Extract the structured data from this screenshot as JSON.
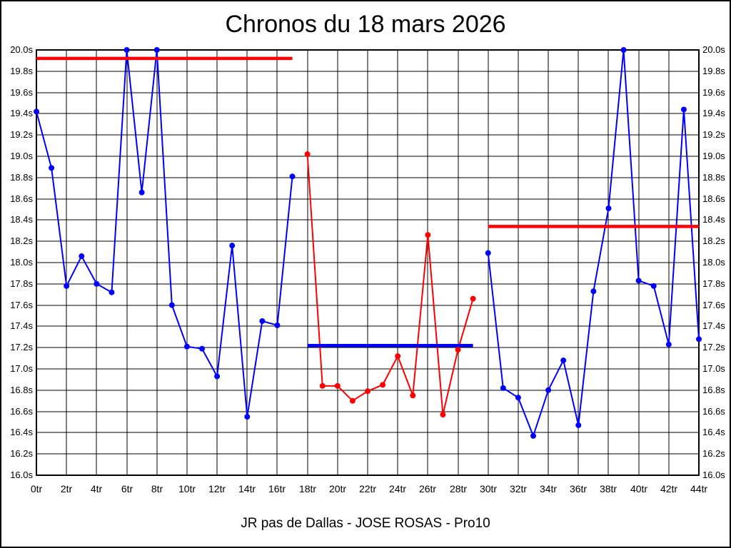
{
  "title": "Chronos du 18 mars 2026",
  "footer": "JR pas de Dallas - JOSE ROSAS - Pro10",
  "colors": {
    "blue_series": "#0000ff",
    "red_series": "#ff0000",
    "grid": "#000000",
    "background": "#ffffff"
  },
  "chart_data": {
    "type": "line",
    "title": "Chronos du 18 mars 2026",
    "xlabel": "",
    "ylabel": "",
    "x_unit": "tr",
    "y_unit": "s",
    "xlim": [
      0,
      44
    ],
    "ylim": [
      16.0,
      20.0
    ],
    "x_tick_step": 2,
    "y_tick_step": 0.2,
    "grid": true,
    "legend": false,
    "x_ticks": [
      "0tr",
      "2tr",
      "4tr",
      "6tr",
      "8tr",
      "10tr",
      "12tr",
      "14tr",
      "16tr",
      "18tr",
      "20tr",
      "22tr",
      "24tr",
      "26tr",
      "28tr",
      "30tr",
      "32tr",
      "34tr",
      "36tr",
      "38tr",
      "40tr",
      "42tr",
      "44tr"
    ],
    "y_ticks": [
      "20.0s",
      "19.8s",
      "19.6s",
      "19.4s",
      "19.2s",
      "19.0s",
      "18.8s",
      "18.6s",
      "18.4s",
      "18.2s",
      "18.0s",
      "17.8s",
      "17.6s",
      "17.4s",
      "17.2s",
      "17.0s",
      "16.8s",
      "16.6s",
      "16.4s",
      "16.2s",
      "16.0s"
    ],
    "series": [
      {
        "name": "segment-1-blue",
        "color": "#0000ff",
        "x_start": 0,
        "values": [
          19.42,
          18.89,
          17.78,
          18.06,
          17.8,
          17.72,
          20.0,
          18.66,
          20.0,
          17.6,
          17.21,
          17.19,
          16.93,
          18.16,
          16.55,
          17.45,
          17.41,
          18.81
        ]
      },
      {
        "name": "segment-2-red",
        "color": "#ff0000",
        "x_start": 18,
        "values": [
          19.02,
          16.84,
          16.84,
          16.7,
          16.79,
          16.85,
          17.12,
          16.75,
          18.26,
          16.57,
          17.18,
          17.66
        ]
      },
      {
        "name": "segment-3-blue",
        "color": "#0000ff",
        "x_start": 30,
        "values": [
          18.09,
          16.82,
          16.73,
          16.37,
          16.8,
          17.08,
          16.47,
          17.73,
          18.51,
          20.0,
          17.83,
          17.78,
          17.23,
          19.44,
          17.28
        ]
      }
    ],
    "reference_lines": [
      {
        "name": "reference-line-1",
        "color": "#ff0000",
        "x_start": 0,
        "x_end": 17,
        "value": 19.92
      },
      {
        "name": "reference-line-2",
        "color": "#0000ff",
        "x_start": 18,
        "x_end": 29,
        "value": 17.22
      },
      {
        "name": "reference-line-3",
        "color": "#ff0000",
        "x_start": 30,
        "x_end": 44,
        "value": 18.34
      }
    ]
  }
}
